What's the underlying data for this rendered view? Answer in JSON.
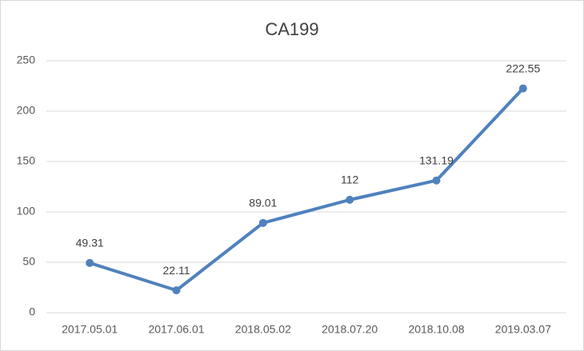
{
  "chart_data": {
    "type": "line",
    "title": "CA199",
    "categories": [
      "2017.05.01",
      "2017.06.01",
      "2018.05.02",
      "2018.07.20",
      "2018.10.08",
      "2019.03.07"
    ],
    "values": [
      49.31,
      22.11,
      89.01,
      112,
      131.19,
      222.55
    ],
    "color": "#4f81bd",
    "ylim": [
      0,
      250
    ],
    "yticks": [
      0,
      50,
      100,
      150,
      200,
      250
    ],
    "grid": true
  }
}
